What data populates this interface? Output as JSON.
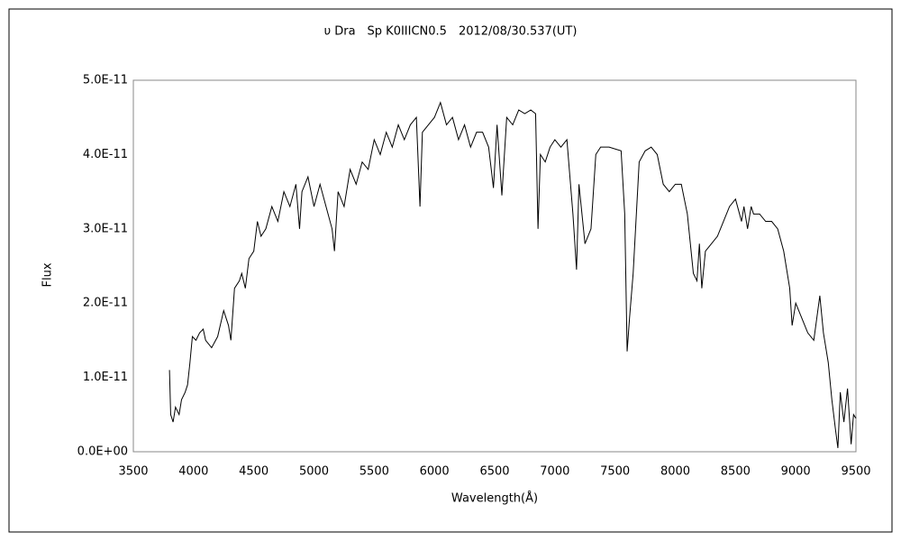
{
  "chart_data": {
    "type": "line",
    "title": "υ Dra　Sp K0IIICN0.5　2012/08/30.537(UT)",
    "x_label": "Wavelength(Å)",
    "y_label": "Flux",
    "color": "#000000",
    "grid": false,
    "xlim": [
      3500,
      9500
    ],
    "xticks": [
      3500,
      4000,
      4500,
      5000,
      5500,
      6000,
      6500,
      7000,
      7500,
      8000,
      8500,
      9000,
      9500
    ],
    "ylim": [
      0,
      5e-11
    ],
    "yticks": [
      {
        "value": 0,
        "label": "0.0E+00"
      },
      {
        "value": 1e-11,
        "label": "1.0E-11"
      },
      {
        "value": 2e-11,
        "label": "2.0E-11"
      },
      {
        "value": 3e-11,
        "label": "3.0E-11"
      },
      {
        "value": 4e-11,
        "label": "4.0E-11"
      },
      {
        "value": 5e-11,
        "label": "5.0E-11"
      }
    ],
    "x": [
      3800,
      3810,
      3830,
      3850,
      3880,
      3900,
      3930,
      3950,
      3970,
      3990,
      4020,
      4050,
      4080,
      4100,
      4150,
      4200,
      4250,
      4290,
      4310,
      4340,
      4380,
      4400,
      4430,
      4460,
      4500,
      4530,
      4560,
      4600,
      4650,
      4700,
      4750,
      4800,
      4850,
      4880,
      4900,
      4950,
      5000,
      5050,
      5100,
      5150,
      5170,
      5200,
      5250,
      5300,
      5350,
      5400,
      5450,
      5500,
      5550,
      5600,
      5650,
      5700,
      5750,
      5800,
      5850,
      5880,
      5900,
      5950,
      6000,
      6050,
      6100,
      6150,
      6200,
      6250,
      6300,
      6350,
      6400,
      6450,
      6490,
      6520,
      6560,
      6600,
      6650,
      6700,
      6750,
      6800,
      6840,
      6860,
      6880,
      6920,
      6960,
      7000,
      7050,
      7100,
      7150,
      7180,
      7200,
      7250,
      7300,
      7340,
      7380,
      7450,
      7550,
      7580,
      7600,
      7620,
      7650,
      7680,
      7700,
      7750,
      7800,
      7850,
      7900,
      7950,
      8000,
      8050,
      8100,
      8150,
      8180,
      8200,
      8220,
      8250,
      8300,
      8350,
      8400,
      8450,
      8500,
      8550,
      8570,
      8600,
      8630,
      8650,
      8700,
      8750,
      8800,
      8850,
      8900,
      8950,
      8970,
      9000,
      9050,
      9100,
      9150,
      9200,
      9230,
      9270,
      9300,
      9330,
      9350,
      9370,
      9400,
      9430,
      9460,
      9480,
      9500
    ],
    "values": [
      1.1e-11,
      5e-12,
      4e-12,
      6e-12,
      5e-12,
      7e-12,
      8e-12,
      9e-12,
      1.2e-11,
      1.55e-11,
      1.5e-11,
      1.6e-11,
      1.65e-11,
      1.5e-11,
      1.4e-11,
      1.55e-11,
      1.9e-11,
      1.7e-11,
      1.5e-11,
      2.2e-11,
      2.3e-11,
      2.4e-11,
      2.2e-11,
      2.6e-11,
      2.7e-11,
      3.1e-11,
      2.9e-11,
      3e-11,
      3.3e-11,
      3.1e-11,
      3.5e-11,
      3.3e-11,
      3.6e-11,
      3e-11,
      3.5e-11,
      3.7e-11,
      3.3e-11,
      3.6e-11,
      3.3e-11,
      3e-11,
      2.7e-11,
      3.5e-11,
      3.3e-11,
      3.8e-11,
      3.6e-11,
      3.9e-11,
      3.8e-11,
      4.2e-11,
      4e-11,
      4.3e-11,
      4.1e-11,
      4.4e-11,
      4.2e-11,
      4.4e-11,
      4.5e-11,
      3.3e-11,
      4.3e-11,
      4.4e-11,
      4.5e-11,
      4.7e-11,
      4.4e-11,
      4.5e-11,
      4.2e-11,
      4.4e-11,
      4.1e-11,
      4.3e-11,
      4.3e-11,
      4.1e-11,
      3.55e-11,
      4.4e-11,
      3.45e-11,
      4.5e-11,
      4.4e-11,
      4.6e-11,
      4.55e-11,
      4.6e-11,
      4.55e-11,
      3e-11,
      4e-11,
      3.9e-11,
      4.1e-11,
      4.2e-11,
      4.1e-11,
      4.2e-11,
      3.2e-11,
      2.45e-11,
      3.6e-11,
      2.8e-11,
      3e-11,
      4e-11,
      4.1e-11,
      4.1e-11,
      4.05e-11,
      3.2e-11,
      1.35e-11,
      1.8e-11,
      2.4e-11,
      3.3e-11,
      3.9e-11,
      4.05e-11,
      4.1e-11,
      4e-11,
      3.6e-11,
      3.5e-11,
      3.6e-11,
      3.6e-11,
      3.2e-11,
      2.4e-11,
      2.3e-11,
      2.8e-11,
      2.2e-11,
      2.7e-11,
      2.8e-11,
      2.9e-11,
      3.1e-11,
      3.3e-11,
      3.4e-11,
      3.1e-11,
      3.3e-11,
      3e-11,
      3.3e-11,
      3.2e-11,
      3.2e-11,
      3.1e-11,
      3.1e-11,
      3e-11,
      2.7e-11,
      2.2e-11,
      1.7e-11,
      2e-11,
      1.8e-11,
      1.6e-11,
      1.5e-11,
      2.1e-11,
      1.6e-11,
      1.2e-11,
      7e-12,
      3e-12,
      5e-13,
      8e-12,
      4e-12,
      8.5e-12,
      1e-12,
      5e-12,
      4.5e-12
    ]
  }
}
